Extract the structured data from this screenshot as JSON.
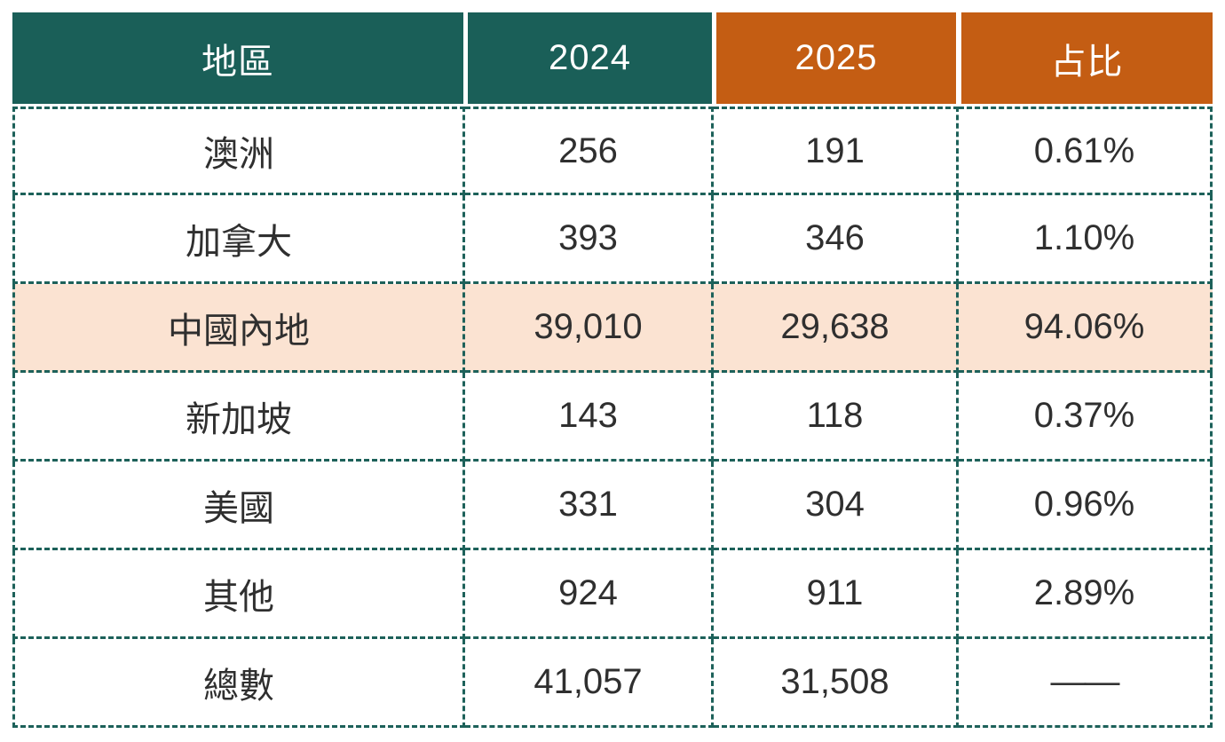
{
  "colors": {
    "header_teal": "#1A5F58",
    "header_orange": "#C45D13",
    "highlight_peach": "#FBE3D2",
    "grid_border_teal": "#1D615A",
    "body_text": "#2F2F2F",
    "header_text": "#FFFFFF"
  },
  "chart_data": {
    "type": "table",
    "columns": [
      "地區",
      "2024",
      "2025",
      "占比"
    ],
    "rows": [
      {
        "region": "澳洲",
        "y2024": "256",
        "y2025": "191",
        "share": "0.61%",
        "highlight": false
      },
      {
        "region": "加拿大",
        "y2024": "393",
        "y2025": "346",
        "share": "1.10%",
        "highlight": false
      },
      {
        "region": "中國內地",
        "y2024": "39,010",
        "y2025": "29,638",
        "share": "94.06%",
        "highlight": true
      },
      {
        "region": "新加坡",
        "y2024": "143",
        "y2025": "118",
        "share": "0.37%",
        "highlight": false
      },
      {
        "region": "美國",
        "y2024": "331",
        "y2025": "304",
        "share": "0.96%",
        "highlight": false
      },
      {
        "region": "其他",
        "y2024": "924",
        "y2025": "911",
        "share": "2.89%",
        "highlight": false
      },
      {
        "region": "總數",
        "y2024": "41,057",
        "y2025": "31,508",
        "share": "——",
        "highlight": false,
        "is_total": true
      }
    ]
  }
}
